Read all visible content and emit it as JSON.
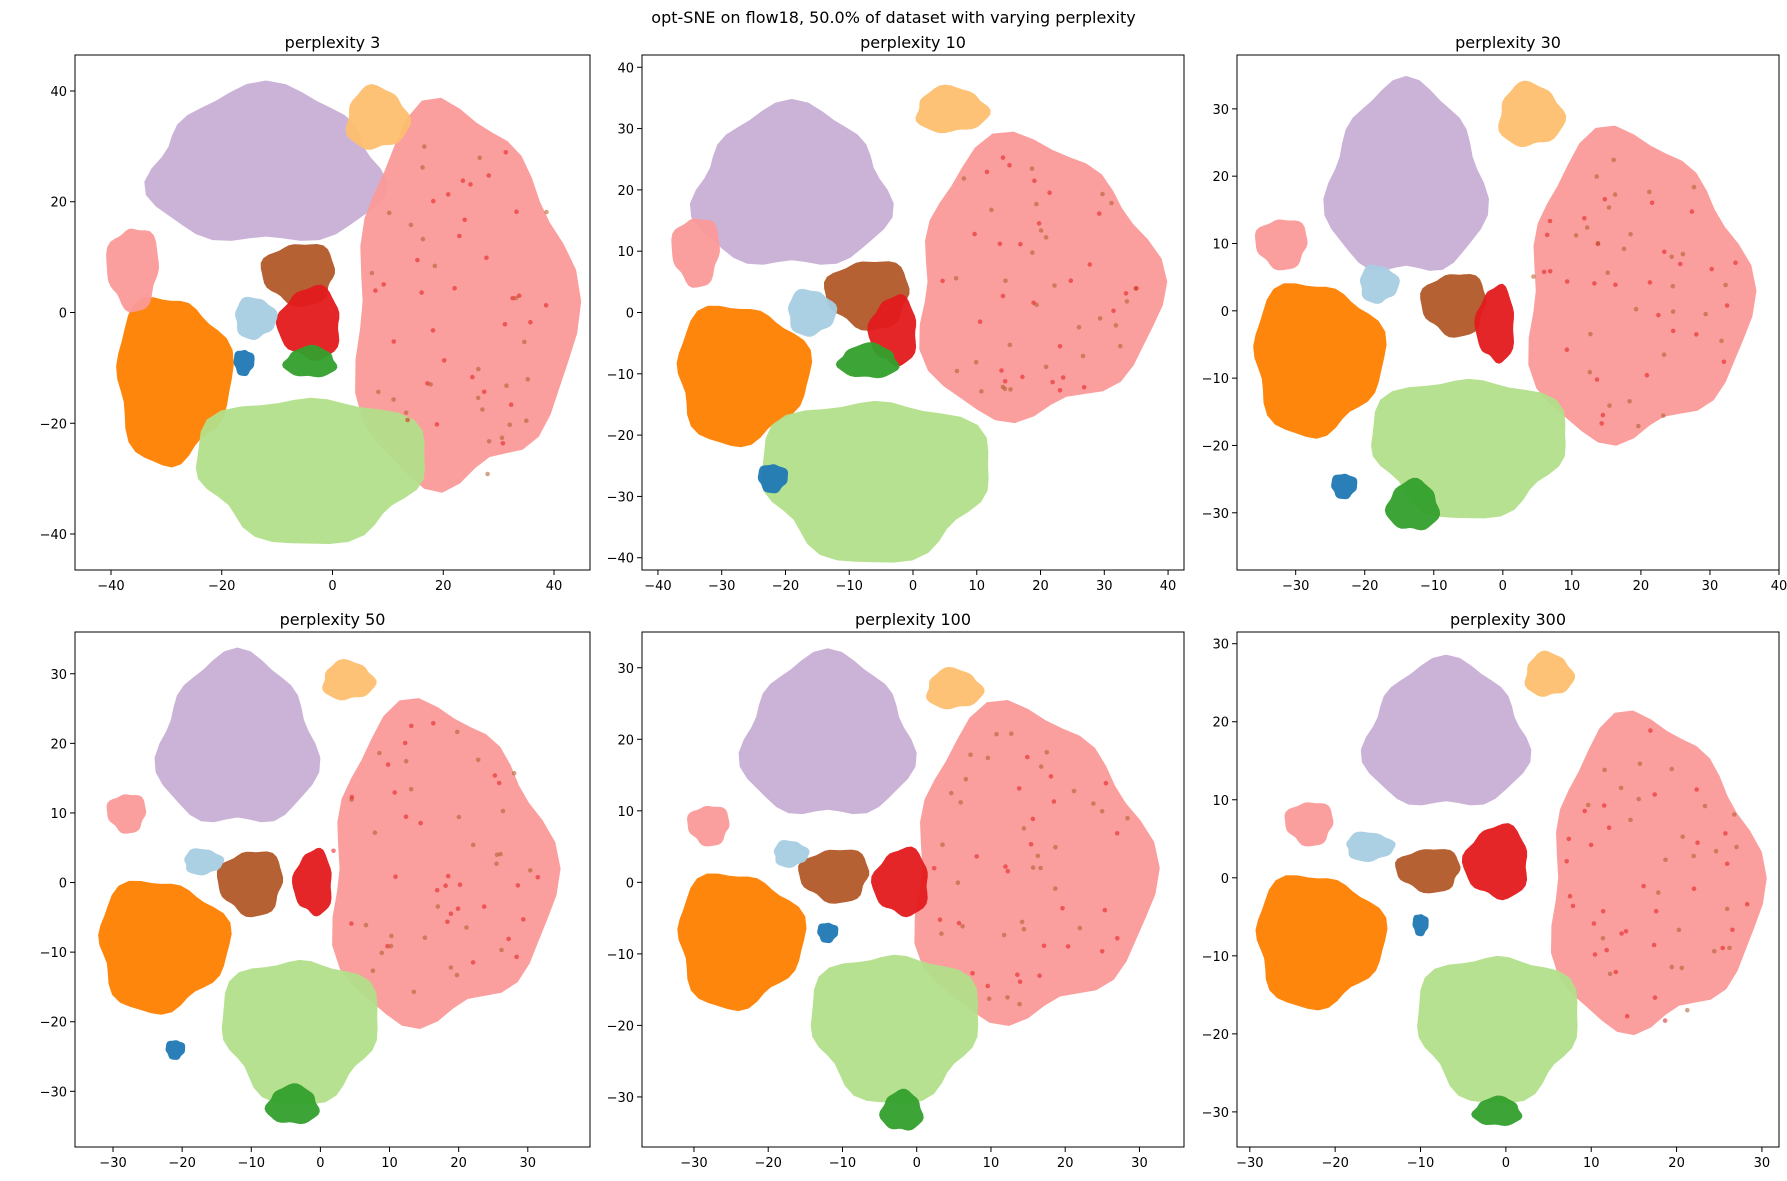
{
  "figure": {
    "title": "opt-SNE on flow18, 50.0% of dataset with varying perplexity"
  },
  "palette": {
    "purple": "#c8afd5",
    "salmon": "#fb9a99",
    "orange": "#ff7f00",
    "light_green": "#b2df8a",
    "green": "#33a02c",
    "brown": "#b15928",
    "red": "#e31a1c",
    "light_blue": "#a6cee3",
    "blue": "#1f78b4",
    "light_orange": "#fdbf6f",
    "dark_purple": "#6a3d9a",
    "yellow": "#ffff99"
  },
  "chart_data": [
    {
      "type": "scatter",
      "title": "perplexity 3",
      "xlim": [
        -46.5,
        46.5
      ],
      "ylim": [
        -46.5,
        46.5
      ],
      "xticks": [
        -40,
        -20,
        0,
        20,
        40
      ],
      "yticks": [
        -40,
        -20,
        0,
        20,
        40
      ],
      "clusters": [
        {
          "color": "purple",
          "center": [
            -12,
            26
          ],
          "radius": [
            22,
            15
          ]
        },
        {
          "color": "salmon",
          "center": [
            23,
            2
          ],
          "radius": [
            21,
            36
          ]
        },
        {
          "color": "orange",
          "center": [
            -29,
            -12
          ],
          "radius": [
            11,
            16
          ]
        },
        {
          "color": "light_green",
          "center": [
            -4,
            -28
          ],
          "radius": [
            22,
            14
          ]
        },
        {
          "color": "brown",
          "center": [
            -6,
            7
          ],
          "radius": [
            7,
            6
          ]
        },
        {
          "color": "red",
          "center": [
            -4,
            -2
          ],
          "radius": [
            6,
            7
          ]
        },
        {
          "color": "green",
          "center": [
            -4,
            -9
          ],
          "radius": [
            5,
            3
          ]
        },
        {
          "color": "light_orange",
          "center": [
            8,
            35
          ],
          "radius": [
            6,
            6
          ]
        },
        {
          "color": "light_blue",
          "center": [
            -14,
            -1
          ],
          "radius": [
            4,
            4
          ]
        },
        {
          "color": "blue",
          "center": [
            -16,
            -9
          ],
          "radius": [
            2,
            2.5
          ]
        },
        {
          "color": "salmon",
          "center": [
            -36,
            8
          ],
          "radius": [
            5,
            8
          ]
        }
      ]
    },
    {
      "type": "scatter",
      "title": "perplexity 10",
      "xlim": [
        -42.5,
        42.5
      ],
      "ylim": [
        -42,
        42
      ],
      "xticks": [
        -40,
        -30,
        -20,
        -10,
        0,
        10,
        20,
        30,
        40
      ],
      "yticks": [
        -40,
        -30,
        -20,
        -10,
        0,
        10,
        20,
        30,
        40
      ],
      "clusters": [
        {
          "color": "purple",
          "center": [
            -19,
            20
          ],
          "radius": [
            16,
            14
          ]
        },
        {
          "color": "salmon",
          "center": [
            19,
            5
          ],
          "radius": [
            20,
            24
          ]
        },
        {
          "color": "orange",
          "center": [
            -27,
            -10
          ],
          "radius": [
            11,
            12
          ]
        },
        {
          "color": "light_green",
          "center": [
            -6,
            -27
          ],
          "radius": [
            19,
            14
          ]
        },
        {
          "color": "brown",
          "center": [
            -7,
            3
          ],
          "radius": [
            7,
            6
          ]
        },
        {
          "color": "red",
          "center": [
            -3,
            -3
          ],
          "radius": [
            4,
            6
          ]
        },
        {
          "color": "green",
          "center": [
            -7,
            -8
          ],
          "radius": [
            5,
            3
          ]
        },
        {
          "color": "light_orange",
          "center": [
            6,
            33
          ],
          "radius": [
            6,
            4
          ]
        },
        {
          "color": "light_blue",
          "center": [
            -16,
            0
          ],
          "radius": [
            4,
            4
          ]
        },
        {
          "color": "blue",
          "center": [
            -22,
            -27
          ],
          "radius": [
            2.5,
            2.5
          ]
        },
        {
          "color": "salmon",
          "center": [
            -34,
            10
          ],
          "radius": [
            4,
            6
          ]
        }
      ]
    },
    {
      "type": "scatter",
      "title": "perplexity 30",
      "xlim": [
        -38.5,
        40
      ],
      "ylim": [
        -38.5,
        38
      ],
      "xticks": [
        -30,
        -20,
        -10,
        0,
        10,
        20,
        30,
        40
      ],
      "yticks": [
        -30,
        -20,
        -10,
        0,
        10,
        20,
        30
      ],
      "clusters": [
        {
          "color": "purple",
          "center": [
            -14,
            19
          ],
          "radius": [
            12,
            15
          ]
        },
        {
          "color": "salmon",
          "center": [
            19,
            3
          ],
          "radius": [
            17,
            24
          ]
        },
        {
          "color": "orange",
          "center": [
            -27,
            -7
          ],
          "radius": [
            10,
            12
          ]
        },
        {
          "color": "light_green",
          "center": [
            -5,
            -20
          ],
          "radius": [
            15,
            11
          ]
        },
        {
          "color": "brown",
          "center": [
            -7,
            1
          ],
          "radius": [
            5,
            5
          ]
        },
        {
          "color": "red",
          "center": [
            -1,
            -2
          ],
          "radius": [
            3,
            6
          ]
        },
        {
          "color": "green",
          "center": [
            -13,
            -29
          ],
          "radius": [
            4,
            4
          ]
        },
        {
          "color": "light_orange",
          "center": [
            4,
            29
          ],
          "radius": [
            5,
            5
          ]
        },
        {
          "color": "light_blue",
          "center": [
            -18,
            4
          ],
          "radius": [
            3,
            3
          ]
        },
        {
          "color": "blue",
          "center": [
            -23,
            -26
          ],
          "radius": [
            2,
            2
          ]
        },
        {
          "color": "salmon",
          "center": [
            -32,
            10
          ],
          "radius": [
            4,
            4
          ]
        }
      ]
    },
    {
      "type": "scatter",
      "title": "perplexity 50",
      "xlim": [
        -35.5,
        39
      ],
      "ylim": [
        -38,
        36
      ],
      "xticks": [
        -30,
        -20,
        -10,
        0,
        10,
        20,
        30
      ],
      "yticks": [
        -30,
        -20,
        -10,
        0,
        10,
        20,
        30
      ],
      "clusters": [
        {
          "color": "purple",
          "center": [
            -12,
            20
          ],
          "radius": [
            12,
            13
          ]
        },
        {
          "color": "salmon",
          "center": [
            17,
            2
          ],
          "radius": [
            17,
            24
          ]
        },
        {
          "color": "orange",
          "center": [
            -23,
            -9
          ],
          "radius": [
            10,
            10
          ]
        },
        {
          "color": "light_green",
          "center": [
            -3,
            -21
          ],
          "radius": [
            12,
            11
          ]
        },
        {
          "color": "brown",
          "center": [
            -10,
            0
          ],
          "radius": [
            5,
            5
          ]
        },
        {
          "color": "red",
          "center": [
            -1,
            0
          ],
          "radius": [
            3,
            5
          ]
        },
        {
          "color": "green",
          "center": [
            -4,
            -32
          ],
          "radius": [
            4,
            3
          ]
        },
        {
          "color": "light_orange",
          "center": [
            4,
            29
          ],
          "radius": [
            4,
            3
          ]
        },
        {
          "color": "light_blue",
          "center": [
            -17,
            3
          ],
          "radius": [
            3,
            2
          ]
        },
        {
          "color": "blue",
          "center": [
            -21,
            -24
          ],
          "radius": [
            1.5,
            1.5
          ]
        },
        {
          "color": "salmon",
          "center": [
            -28,
            10
          ],
          "radius": [
            3,
            3
          ]
        }
      ]
    },
    {
      "type": "scatter",
      "title": "perplexity 100",
      "xlim": [
        -37,
        36
      ],
      "ylim": [
        -37,
        35
      ],
      "xticks": [
        -30,
        -20,
        -10,
        0,
        10,
        20,
        30
      ],
      "yticks": [
        -30,
        -20,
        -10,
        0,
        10,
        20,
        30
      ],
      "clusters": [
        {
          "color": "purple",
          "center": [
            -12,
            20
          ],
          "radius": [
            12,
            12
          ]
        },
        {
          "color": "salmon",
          "center": [
            15,
            2
          ],
          "radius": [
            17,
            23
          ]
        },
        {
          "color": "orange",
          "center": [
            -24,
            -8
          ],
          "radius": [
            9,
            10
          ]
        },
        {
          "color": "light_green",
          "center": [
            -3,
            -20
          ],
          "radius": [
            12,
            11
          ]
        },
        {
          "color": "brown",
          "center": [
            -11,
            1
          ],
          "radius": [
            5,
            4
          ]
        },
        {
          "color": "red",
          "center": [
            -2,
            0
          ],
          "radius": [
            4,
            5
          ]
        },
        {
          "color": "green",
          "center": [
            -2,
            -32
          ],
          "radius": [
            3,
            3
          ]
        },
        {
          "color": "light_orange",
          "center": [
            5,
            27
          ],
          "radius": [
            4,
            3
          ]
        },
        {
          "color": "light_blue",
          "center": [
            -17,
            4
          ],
          "radius": [
            2.5,
            2
          ]
        },
        {
          "color": "blue",
          "center": [
            -12,
            -7
          ],
          "radius": [
            1.5,
            1.5
          ]
        },
        {
          "color": "salmon",
          "center": [
            -28,
            8
          ],
          "radius": [
            3,
            3
          ]
        }
      ]
    },
    {
      "type": "scatter",
      "title": "perplexity 300",
      "xlim": [
        -31.5,
        32
      ],
      "ylim": [
        -34.5,
        31.5
      ],
      "xticks": [
        -30,
        -20,
        -10,
        0,
        10,
        20,
        30
      ],
      "yticks": [
        -30,
        -20,
        -10,
        0,
        10,
        20,
        30
      ],
      "clusters": [
        {
          "color": "purple",
          "center": [
            -7,
            18
          ],
          "radius": [
            10,
            10
          ]
        },
        {
          "color": "salmon",
          "center": [
            17,
            0
          ],
          "radius": [
            13,
            21
          ]
        },
        {
          "color": "orange",
          "center": [
            -22,
            -8
          ],
          "radius": [
            8,
            9
          ]
        },
        {
          "color": "light_green",
          "center": [
            -1,
            -19
          ],
          "radius": [
            10,
            10
          ]
        },
        {
          "color": "brown",
          "center": [
            -9,
            1
          ],
          "radius": [
            4,
            3
          ]
        },
        {
          "color": "red",
          "center": [
            -1,
            2
          ],
          "radius": [
            4,
            5
          ]
        },
        {
          "color": "green",
          "center": [
            -1,
            -30
          ],
          "radius": [
            3,
            2
          ]
        },
        {
          "color": "light_orange",
          "center": [
            5,
            26
          ],
          "radius": [
            3,
            3
          ]
        },
        {
          "color": "light_blue",
          "center": [
            -16,
            4
          ],
          "radius": [
            3,
            2
          ]
        },
        {
          "color": "blue",
          "center": [
            -10,
            -6
          ],
          "radius": [
            1,
            1.5
          ]
        },
        {
          "color": "salmon",
          "center": [
            -23,
            7
          ],
          "radius": [
            3,
            3
          ]
        }
      ]
    }
  ]
}
